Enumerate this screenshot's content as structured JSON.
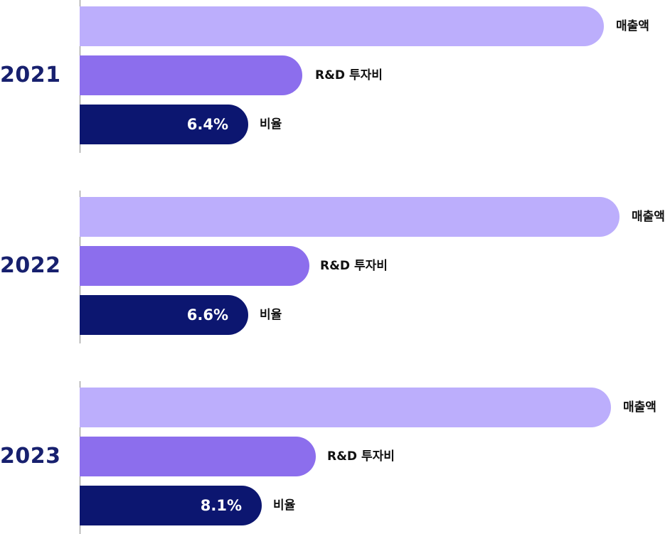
{
  "chart_data": {
    "type": "bar",
    "orientation": "horizontal",
    "categories": [
      "2021",
      "2022",
      "2023"
    ],
    "series": [
      {
        "name": "매출액",
        "color": "#bcaefc"
      },
      {
        "name": "R&D 투자비",
        "color": "#8c6eed"
      },
      {
        "name": "비율",
        "color": "#0c1670",
        "values": [
          6.4,
          6.6,
          8.1
        ],
        "value_labels": [
          "6.4%",
          "6.6%",
          "8.1%"
        ]
      }
    ]
  }
}
